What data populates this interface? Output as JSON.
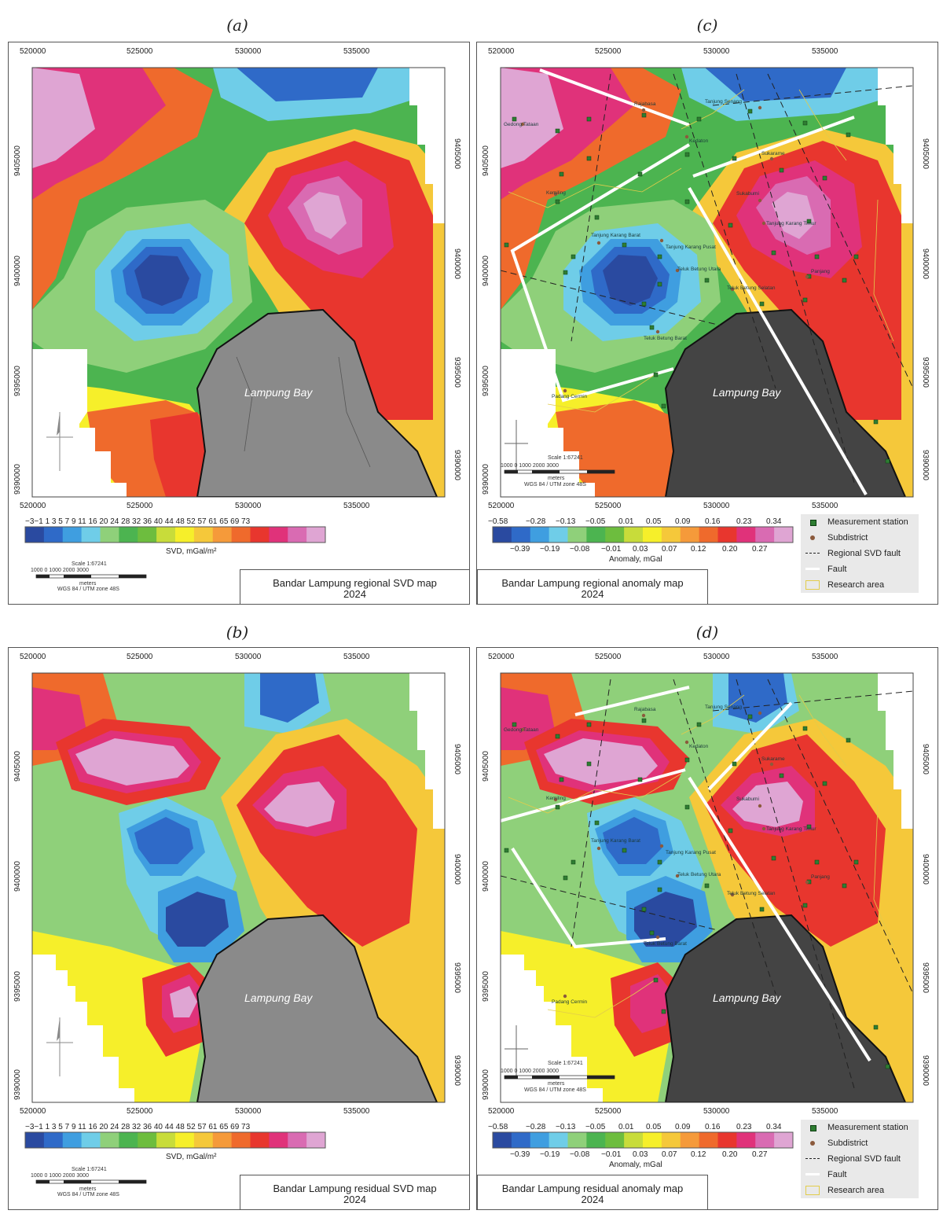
{
  "panel_labels": {
    "a": "(a)",
    "b": "(b)",
    "c": "(c)",
    "d": "(d)"
  },
  "axes": {
    "x_ticks": [
      "520000",
      "525000",
      "530000",
      "535000"
    ],
    "y_ticks": [
      "9405000",
      "9400000",
      "9395000",
      "9390000"
    ]
  },
  "bay_label": "Lampung Bay",
  "svd_colorbar": {
    "ticks": "−3−1 1  3  5  7  9 11  16  20  24  28  32  36  40  44  48  52  57  61  65  69  73",
    "label": "SVD, mGal/m²"
  },
  "anomaly_colorbar": {
    "upper_ticks": [
      "−0.58",
      "−0.28",
      "−0.13",
      "−0.05",
      "0.01",
      "0.05",
      "0.09",
      "0.16",
      "0.23",
      "0.34"
    ],
    "lower_ticks": [
      "−0.39",
      "−0.19",
      "−0.08",
      "−0.01",
      "0.03",
      "0.07",
      "0.12",
      "0.20",
      "0.27"
    ],
    "label": "Anomaly, mGal"
  },
  "scale_bar": {
    "scale": "Scale 1:67241",
    "numbers": "1000     0     1000    2000    3000",
    "unit": "meters",
    "crs": "WGS 84 / UTM zone 48S"
  },
  "titles": {
    "a": {
      "line1": "Bandar Lampung regional SVD map",
      "line2": "2024"
    },
    "b": {
      "line1": "Bandar Lampung residual SVD map",
      "line2": "2024"
    },
    "c": {
      "line1": "Bandar Lampung regional anomaly map",
      "line2": "2024"
    },
    "d": {
      "line1": "Bandar Lampung residual anomaly map",
      "line2": "2024"
    }
  },
  "legend": {
    "station": "Measurement station",
    "subdistrict": "Subdistrict",
    "regional_fault": "Regional SVD fault",
    "fault": "Fault",
    "research_area": "Research area"
  },
  "subdistricts": [
    "Rajabasa",
    "Tanjung Senang",
    "Gedong Tataan",
    "Kedaton",
    "Sukarame",
    "Kemiling",
    "Sukabumi",
    "Tanjung Karang Timur",
    "Tanjung Karang Barat",
    "Tanjung Karang Pusat",
    "Teluk Betung Utara",
    "Teluk Betung Selatan",
    "Panjang",
    "Teluk Betung Barat",
    "Padang Cermin"
  ],
  "colors": {
    "ramp": [
      "#2a4aa0",
      "#2f6ac8",
      "#3f9ee0",
      "#6fcde8",
      "#8fd07a",
      "#4cb450",
      "#6dbd3e",
      "#c8dc3a",
      "#f6ef2a",
      "#f5c83a",
      "#f59a3a",
      "#ef6a2c",
      "#e8362e",
      "#e0327a",
      "#d96bb2",
      "#dfa5d3"
    ],
    "bay_light": "#8a8a8a",
    "bay_dark": "#444444",
    "fault": "#ffffff",
    "station": "#2e7d32",
    "subdistrict": "#8b5a3c",
    "research_area": "#e2cc4a"
  }
}
